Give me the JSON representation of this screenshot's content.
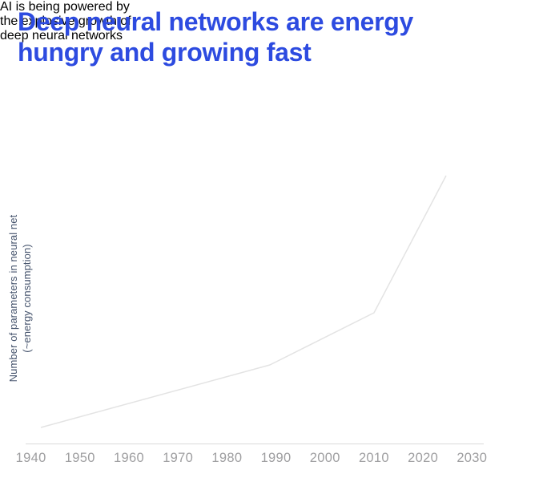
{
  "header": {
    "title_lines": [
      "Deep neural networks are energy",
      "hungry and growing fast"
    ],
    "subtitle_lines": [
      "AI is being powered by",
      "the explosive growth of",
      "deep neural networks"
    ]
  },
  "chart_data": {
    "type": "line",
    "title": "Deep neural networks are energy hungry and growing fast",
    "subtitle": "AI is being powered by the explosive growth of deep neural networks",
    "xlabel": "",
    "ylabel_line1": "Number of parameters in neural net",
    "ylabel_line2": "(~energy consumption)",
    "x_tick_labels": [
      "1940",
      "1950",
      "1960",
      "1970",
      "1980",
      "1990",
      "2000",
      "2010",
      "2020",
      "2030"
    ],
    "x_range": [
      1938,
      2032
    ],
    "y_axis": "relative scale, no tick labels shown",
    "grid": false,
    "legend_position": "none",
    "series": [
      {
        "name": "Number of parameters in neural net (~energy consumption)",
        "x": [
          1942,
          1989,
          2010,
          2024
        ],
        "y_relative": [
          0.06,
          0.29,
          0.49,
          1.0
        ],
        "shape_note": "slow rise 1942-1989, moderate rise 1989-2010, explosive rise 2010-2024"
      }
    ],
    "line_points_px": "51,533 337,455 467,390 557,219"
  },
  "theme": {
    "title_color": "#2d4be0",
    "subtitle_color": "#45536c",
    "axis_label_color": "#45536c",
    "tick_label_color": "#9e9ea0",
    "line_color": "#e3e3e3",
    "axis_line_color": "#d9d9d9",
    "background": "#ffffff"
  }
}
